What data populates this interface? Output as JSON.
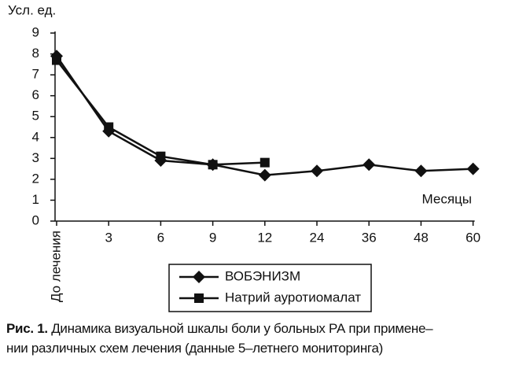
{
  "chart_data": {
    "type": "line",
    "y_label": "Усл. ед.",
    "x_label": "Месяцы",
    "categories": [
      "До лечения",
      "3",
      "6",
      "9",
      "12",
      "24",
      "36",
      "48",
      "60"
    ],
    "series": [
      {
        "name": "ВОБЭНИЗМ",
        "color": "#111111",
        "marker": "diamond",
        "values": [
          7.9,
          4.3,
          2.9,
          2.7,
          2.2,
          2.4,
          2.7,
          2.4,
          2.5
        ]
      },
      {
        "name": "Натрий ауротиомалат",
        "color": "#111111",
        "marker": "square",
        "values": [
          7.7,
          4.5,
          3.1,
          2.7,
          2.8,
          null,
          null,
          null,
          null
        ]
      }
    ],
    "ylim": [
      0,
      9
    ],
    "yticks": [
      0,
      1,
      2,
      3,
      4,
      5,
      6,
      7,
      8,
      9
    ],
    "grid": false
  },
  "caption": {
    "label": "Рис. 1.",
    "lines": [
      "Динамика визуальной шкалы боли у больных РА при примене–",
      "нии различных схем лечения (данные 5–летнего мониторинга)"
    ]
  }
}
